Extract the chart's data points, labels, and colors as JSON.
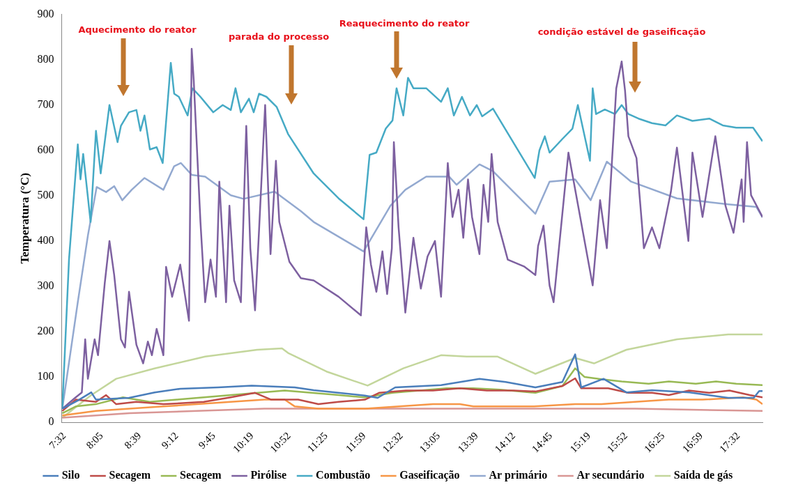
{
  "chart_data": {
    "type": "line",
    "ylabel": "Temperatura (°C)",
    "xlim": [
      7.49,
      17.89
    ],
    "ylim": [
      0,
      900
    ],
    "yticks": [
      0,
      100,
      200,
      300,
      400,
      500,
      600,
      700,
      800,
      900
    ],
    "xticks": [
      {
        "value": 7.5333,
        "label": "7:32"
      },
      {
        "value": 8.0833,
        "label": "8:05"
      },
      {
        "value": 8.65,
        "label": "8:39"
      },
      {
        "value": 9.2,
        "label": "9:12"
      },
      {
        "value": 9.75,
        "label": "9:45"
      },
      {
        "value": 10.3167,
        "label": "10:19"
      },
      {
        "value": 10.8667,
        "label": "10:52"
      },
      {
        "value": 11.4167,
        "label": "11:25"
      },
      {
        "value": 11.9833,
        "label": "11:59"
      },
      {
        "value": 12.5333,
        "label": "12:32"
      },
      {
        "value": 13.0833,
        "label": "13:05"
      },
      {
        "value": 13.65,
        "label": "13:39"
      },
      {
        "value": 14.2,
        "label": "14:12"
      },
      {
        "value": 14.75,
        "label": "14:45"
      },
      {
        "value": 15.3167,
        "label": "15:19"
      },
      {
        "value": 15.8667,
        "label": "15:52"
      },
      {
        "value": 16.4167,
        "label": "16:25"
      },
      {
        "value": 16.9833,
        "label": "16:59"
      },
      {
        "value": 17.5333,
        "label": "17:32"
      }
    ],
    "legend": "bottom",
    "marker": "none",
    "line_style": "solid",
    "annotations": [
      "Aquecimento do reator",
      "parada do processo",
      "Reaquecimento do reator",
      "condição estável de gaseificação"
    ],
    "series": [
      {
        "name": "Silo",
        "color": "#4a7ebb",
        "x": [
          7.5,
          7.73,
          7.93,
          8.0,
          8.49,
          8.87,
          9.25,
          9.81,
          10.31,
          10.95,
          11.23,
          11.99,
          12.18,
          12.44,
          13.12,
          13.69,
          14.08,
          14.52,
          14.92,
          15.11,
          15.2,
          15.53,
          15.87,
          16.25,
          16.81,
          17.38,
          17.76,
          17.84,
          17.89
        ],
        "values": [
          30,
          48,
          66,
          50,
          54,
          66,
          74,
          77,
          81,
          77,
          71,
          59,
          54,
          77,
          82,
          96,
          89,
          77,
          89,
          150,
          77,
          96,
          66,
          71,
          66,
          54,
          54,
          69,
          69
        ]
      },
      {
        "name": "Secagem",
        "color": "#be4b48",
        "x": [
          7.5,
          7.7,
          8.0,
          8.15,
          8.3,
          8.6,
          9.0,
          9.6,
          10.0,
          10.36,
          10.6,
          11.0,
          11.3,
          11.6,
          11.99,
          12.2,
          12.6,
          13.0,
          13.4,
          13.8,
          14.2,
          14.52,
          14.92,
          15.11,
          15.2,
          15.6,
          15.9,
          16.25,
          16.5,
          16.8,
          17.1,
          17.4,
          17.7,
          17.89
        ],
        "values": [
          25,
          50,
          45,
          60,
          40,
          45,
          40,
          45,
          55,
          65,
          50,
          50,
          40,
          45,
          50,
          65,
          70,
          70,
          75,
          70,
          70,
          68,
          80,
          97,
          75,
          75,
          65,
          65,
          60,
          70,
          65,
          70,
          60,
          55
        ]
      },
      {
        "name": "Secagem",
        "color": "#98b954",
        "x": [
          7.5,
          7.7,
          8.0,
          8.4,
          8.8,
          9.2,
          9.6,
          10.0,
          10.4,
          10.8,
          11.2,
          11.6,
          11.99,
          12.4,
          12.8,
          13.2,
          13.6,
          14.0,
          14.52,
          14.92,
          15.11,
          15.25,
          15.5,
          15.8,
          16.2,
          16.5,
          16.9,
          17.2,
          17.5,
          17.89
        ],
        "values": [
          20,
          35,
          40,
          55,
          45,
          50,
          55,
          60,
          65,
          70,
          65,
          60,
          55,
          65,
          70,
          75,
          75,
          72,
          65,
          80,
          119,
          100,
          95,
          90,
          85,
          90,
          85,
          90,
          85,
          82
        ]
      },
      {
        "name": "Pirólise",
        "color": "#7d60a0",
        "x": [
          7.5,
          7.69,
          7.79,
          7.84,
          7.88,
          7.98,
          8.03,
          8.13,
          8.2,
          8.27,
          8.37,
          8.43,
          8.49,
          8.6,
          8.7,
          8.77,
          8.83,
          8.9,
          9.0,
          9.04,
          9.13,
          9.25,
          9.38,
          9.42,
          9.45,
          9.55,
          9.62,
          9.7,
          9.78,
          9.83,
          9.93,
          9.98,
          10.05,
          10.15,
          10.23,
          10.29,
          10.36,
          10.42,
          10.51,
          10.59,
          10.67,
          10.72,
          10.87,
          11.04,
          11.23,
          11.6,
          11.93,
          12.01,
          12.08,
          12.16,
          12.25,
          12.32,
          12.39,
          12.42,
          12.49,
          12.59,
          12.71,
          12.82,
          12.92,
          13.03,
          13.12,
          13.22,
          13.29,
          13.38,
          13.45,
          13.52,
          13.58,
          13.69,
          13.75,
          13.82,
          13.87,
          13.96,
          14.11,
          14.35,
          14.52,
          14.56,
          14.64,
          14.73,
          14.79,
          15.01,
          15.37,
          15.48,
          15.58,
          15.72,
          15.8,
          15.85,
          15.9,
          16.02,
          16.13,
          16.25,
          16.36,
          16.53,
          16.62,
          16.79,
          16.85,
          17.0,
          17.19,
          17.34,
          17.46,
          17.58,
          17.61,
          17.66,
          17.72,
          17.89
        ],
        "values": [
          30,
          54,
          66,
          183,
          96,
          183,
          148,
          307,
          400,
          325,
          183,
          165,
          288,
          171,
          130,
          178,
          148,
          206,
          148,
          343,
          277,
          348,
          224,
          824,
          755,
          442,
          265,
          359,
          277,
          531,
          265,
          478,
          313,
          265,
          654,
          384,
          247,
          425,
          700,
          371,
          577,
          442,
          354,
          318,
          313,
          277,
          236,
          430,
          348,
          288,
          377,
          283,
          384,
          618,
          430,
          242,
          407,
          295,
          366,
          400,
          277,
          572,
          453,
          513,
          407,
          536,
          453,
          371,
          524,
          442,
          592,
          442,
          359,
          344,
          325,
          389,
          434,
          302,
          265,
          595,
          302,
          490,
          384,
          737,
          796,
          732,
          631,
          583,
          384,
          430,
          384,
          508,
          606,
          400,
          595,
          453,
          631,
          478,
          418,
          536,
          442,
          618,
          501,
          453
        ]
      },
      {
        "name": "Combustão",
        "color": "#46aac5",
        "x": [
          7.5,
          7.6,
          7.73,
          7.77,
          7.81,
          7.92,
          8.0,
          8.07,
          8.2,
          8.32,
          8.37,
          8.49,
          8.6,
          8.66,
          8.72,
          8.8,
          8.9,
          8.99,
          9.07,
          9.11,
          9.16,
          9.23,
          9.36,
          9.43,
          9.55,
          9.74,
          9.88,
          10.0,
          10.07,
          10.15,
          10.27,
          10.34,
          10.42,
          10.53,
          10.68,
          10.85,
          11.23,
          11.6,
          11.97,
          12.06,
          12.16,
          12.3,
          12.4,
          12.46,
          12.56,
          12.63,
          12.71,
          12.9,
          13.12,
          13.22,
          13.31,
          13.43,
          13.55,
          13.65,
          13.73,
          13.89,
          14.51,
          14.58,
          14.66,
          14.73,
          14.92,
          15.07,
          15.15,
          15.33,
          15.37,
          15.42,
          15.55,
          15.7,
          15.8,
          15.9,
          16.05,
          16.25,
          16.45,
          16.62,
          16.85,
          17.1,
          17.3,
          17.5,
          17.75,
          17.89
        ],
        "values": [
          30,
          360,
          613,
          536,
          592,
          442,
          643,
          549,
          700,
          618,
          654,
          684,
          689,
          643,
          677,
          602,
          607,
          572,
          718,
          793,
          725,
          718,
          677,
          737,
          718,
          684,
          700,
          689,
          737,
          684,
          714,
          684,
          725,
          718,
          696,
          636,
          549,
          494,
          448,
          590,
          595,
          648,
          666,
          737,
          677,
          760,
          737,
          737,
          707,
          737,
          677,
          718,
          677,
          700,
          675,
          692,
          539,
          600,
          631,
          595,
          625,
          648,
          700,
          577,
          737,
          680,
          690,
          680,
          700,
          680,
          670,
          660,
          655,
          677,
          665,
          670,
          655,
          650,
          650,
          620
        ]
      },
      {
        "name": "Gaseificação",
        "color": "#f79646",
        "x": [
          7.5,
          8.0,
          8.5,
          9.0,
          9.5,
          10.0,
          10.5,
          10.8,
          10.95,
          11.3,
          12.0,
          12.5,
          13.0,
          13.4,
          13.6,
          14.0,
          14.5,
          15.11,
          15.5,
          16.0,
          16.5,
          17.0,
          17.6,
          17.8,
          17.89
        ],
        "values": [
          15,
          25,
          30,
          35,
          40,
          45,
          50,
          50,
          35,
          30,
          30,
          35,
          40,
          40,
          35,
          35,
          35,
          40,
          40,
          45,
          50,
          50,
          55,
          50,
          40
        ]
      },
      {
        "name": "Ar primário",
        "color": "#93a9d0",
        "x": [
          7.5,
          7.73,
          7.88,
          8.01,
          8.15,
          8.27,
          8.39,
          8.53,
          8.72,
          9.0,
          9.16,
          9.26,
          9.42,
          9.62,
          10.0,
          10.19,
          10.65,
          11.04,
          11.23,
          11.97,
          12.37,
          12.59,
          12.9,
          13.24,
          13.35,
          13.69,
          13.89,
          14.52,
          14.73,
          15.11,
          15.34,
          15.58,
          15.94,
          16.62,
          17.38,
          17.8,
          17.89
        ],
        "values": [
          30,
          265,
          412,
          519,
          508,
          521,
          490,
          513,
          539,
          513,
          565,
          572,
          546,
          542,
          501,
          493,
          509,
          466,
          442,
          377,
          478,
          513,
          542,
          542,
          524,
          569,
          554,
          460,
          531,
          536,
          490,
          575,
          531,
          494,
          481,
          475,
          452
        ]
      },
      {
        "name": "Ar secundário",
        "color": "#d99694",
        "x": [
          7.5,
          8.5,
          9.5,
          10.5,
          12.0,
          14.0,
          16.0,
          17.89
        ],
        "values": [
          10,
          20,
          25,
          30,
          30,
          30,
          30,
          25
        ]
      },
      {
        "name": "Saída de gás",
        "color": "#c3d69b",
        "x": [
          7.5,
          7.92,
          8.3,
          8.87,
          9.62,
          10.39,
          10.76,
          10.85,
          11.42,
          12.03,
          12.56,
          13.12,
          13.5,
          13.96,
          14.52,
          15.11,
          15.39,
          15.87,
          16.62,
          17.38,
          17.89
        ],
        "values": [
          10,
          59,
          96,
          119,
          145,
          160,
          163,
          153,
          112,
          81,
          119,
          148,
          145,
          145,
          107,
          142,
          130,
          160,
          183,
          194,
          194
        ]
      }
    ]
  }
}
